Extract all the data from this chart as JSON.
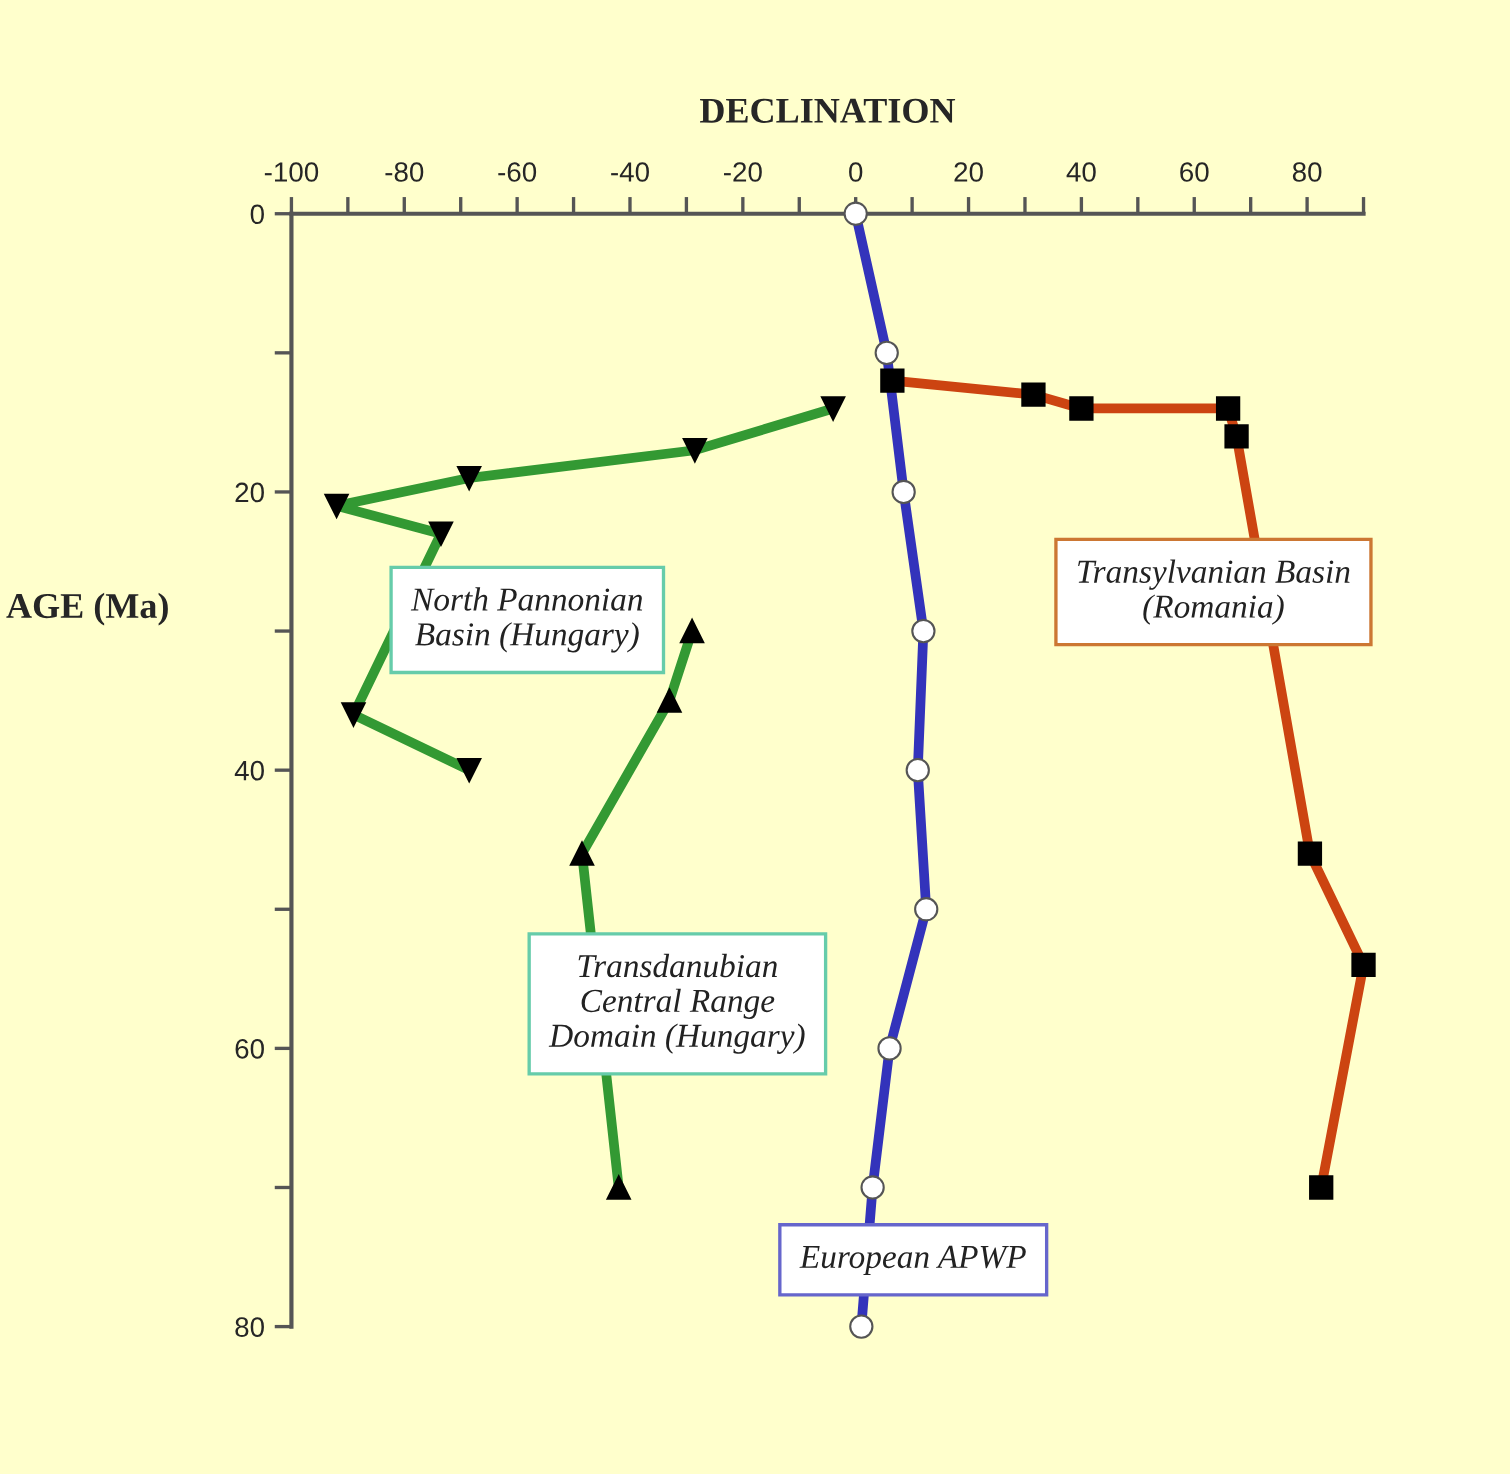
{
  "chart_data": {
    "type": "line",
    "xlabel": "DECLINATION",
    "ylabel": "AGE (Ma)",
    "xlim": [
      -100,
      90
    ],
    "xticks": [
      -100,
      {
        "value": -90,
        "label": null
      },
      -80,
      {
        "value": -70,
        "label": null
      },
      -60,
      {
        "value": -50,
        "label": null
      },
      -40,
      {
        "value": -30,
        "label": null
      },
      -20,
      {
        "value": -10,
        "label": null
      },
      0,
      {
        "value": 10,
        "label": null
      },
      20,
      {
        "value": 30,
        "label": null
      },
      40,
      {
        "value": 50,
        "label": null
      },
      60,
      {
        "value": 70,
        "label": null
      },
      80,
      {
        "value": 90,
        "label": null
      }
    ],
    "ylim": [
      80,
      0
    ],
    "yticks": [
      0,
      {
        "value": 10,
        "label": null
      },
      20,
      {
        "value": 30,
        "label": null
      },
      40,
      {
        "value": 50,
        "label": null
      },
      60,
      {
        "value": 70,
        "label": null
      },
      80
    ],
    "grid": false,
    "legend": false,
    "series": [
      {
        "name": "European APWP",
        "color": "#3333bb",
        "marker": "circle",
        "x": [
          0,
          5.5,
          8.5,
          12,
          11,
          12.5,
          6,
          3,
          1
        ],
        "values": [
          0,
          10,
          20,
          30,
          40,
          50,
          60,
          70,
          80
        ]
      },
      {
        "name": "Transylvanian Basin\n(Romania)",
        "color": "#cc4411",
        "marker": "square",
        "x": [
          6.5,
          31.5,
          40,
          66,
          67.5,
          80.5,
          90,
          82.5
        ],
        "values": [
          12,
          13,
          14,
          14,
          16,
          46,
          54,
          70
        ]
      },
      {
        "name": "North Pannonian\nBasin (Hungary)",
        "color": "#339933",
        "marker": "triangle_down",
        "x": [
          -4,
          -28.5,
          -68.5,
          -92,
          -73.5,
          -89,
          -68.5
        ],
        "values": [
          14,
          17,
          19,
          21,
          23,
          36,
          40
        ]
      },
      {
        "name": "Transdanubian\nCentral Range\nDomain (Hungary)",
        "color": "#339933",
        "marker": "triangle",
        "x": [
          -29,
          -33,
          -48.5,
          -42
        ],
        "values": [
          30,
          35,
          46,
          70
        ]
      }
    ]
  }
}
